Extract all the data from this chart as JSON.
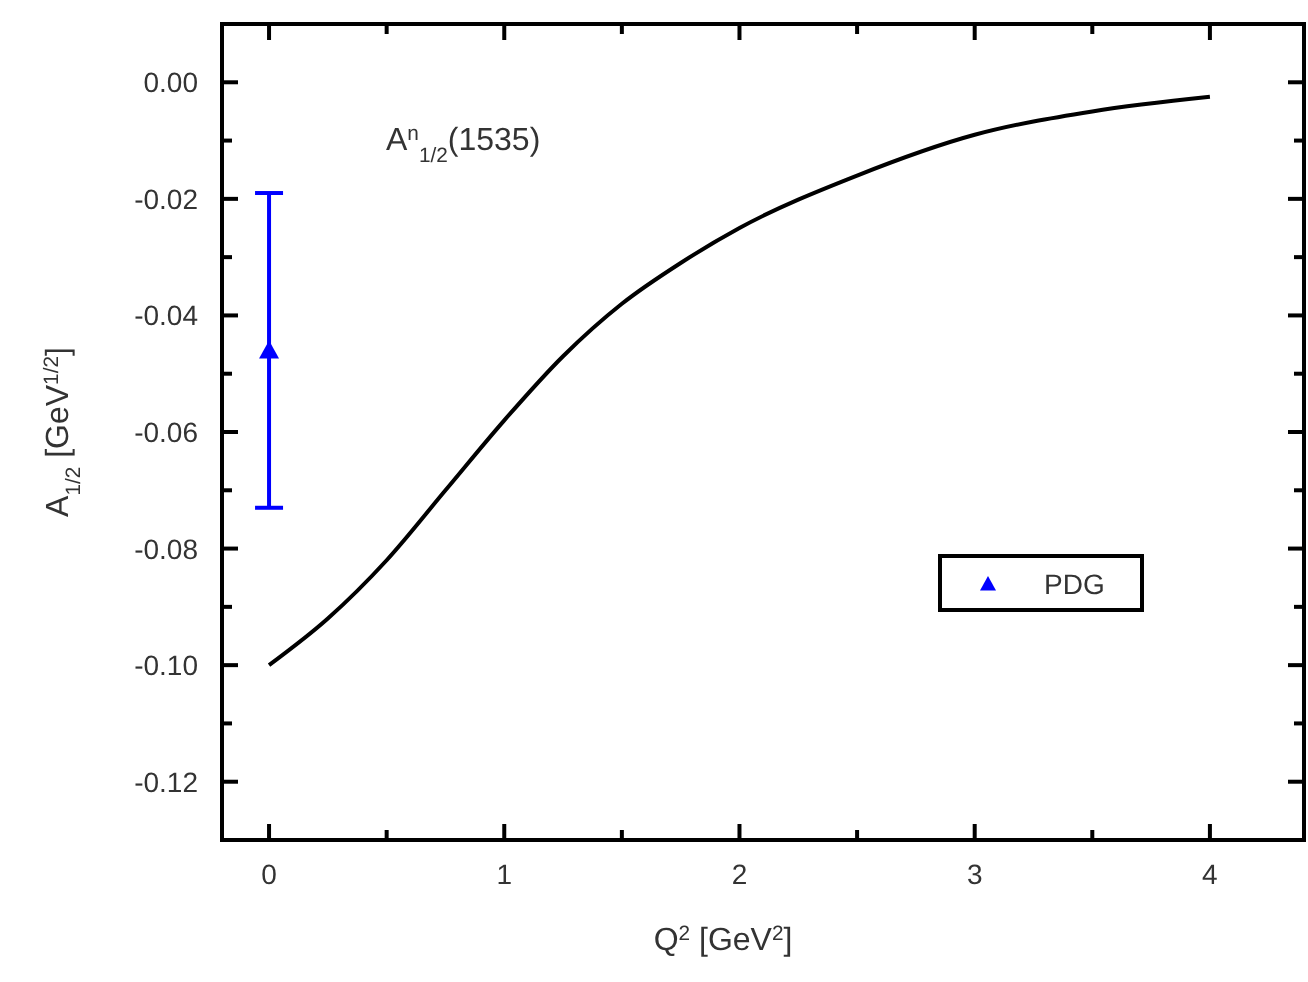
{
  "chart_data": {
    "type": "line",
    "xlabel": "Q$^{2}$ [GeV$^{2}$]",
    "ylabel": "A$_{1/2}$ [GeV$^{1/2}$]",
    "annotations": [
      "A$^{n}$$_{1/2}$(1535)"
    ],
    "xlim": [
      -0.2,
      4.4
    ],
    "xticks": [
      0,
      {
        "value": 0.5,
        "label": null
      },
      1,
      {
        "value": 1.5,
        "label": null
      },
      2,
      {
        "value": 2.5,
        "label": null
      },
      3,
      {
        "value": 3.5,
        "label": null
      },
      4
    ],
    "ylim": [
      -0.13,
      0.01
    ],
    "yticks": [
      {
        "value": 0,
        "label": "0.00"
      },
      {
        "value": -0.01,
        "label": null
      },
      {
        "value": -0.02,
        "label": "-0.02"
      },
      {
        "value": -0.03,
        "label": null
      },
      {
        "value": -0.04,
        "label": "-0.04"
      },
      {
        "value": -0.05,
        "label": null
      },
      {
        "value": -0.06,
        "label": "-0.06"
      },
      {
        "value": -0.07,
        "label": null
      },
      {
        "value": -0.08,
        "label": "-0.08"
      },
      {
        "value": -0.09,
        "label": null
      },
      {
        "value": -0.1,
        "label": "-0.10"
      },
      {
        "value": -0.11,
        "label": null
      },
      {
        "value": -0.12,
        "label": "-0.12"
      }
    ],
    "legend": "right",
    "series": [
      {
        "color": "#000000",
        "x": [
          0,
          0.25,
          0.5,
          0.75,
          1,
          1.25,
          1.5,
          1.75,
          2,
          2.5,
          3,
          3.5,
          4
        ],
        "values": [
          -0.1,
          -0.092,
          -0.082,
          -0.07,
          -0.058,
          -0.047,
          -0.038,
          -0.031,
          -0.025,
          -0.016,
          -0.009,
          -0.005,
          -0.0025
        ]
      },
      {
        "type": "scatter",
        "name": "PDG",
        "color": "#0000ff",
        "marker": "triangle",
        "x": [
          0
        ],
        "values": [
          -0.046
        ],
        "errors": [
          [
            -0.073,
            -0.019
          ]
        ]
      }
    ]
  }
}
